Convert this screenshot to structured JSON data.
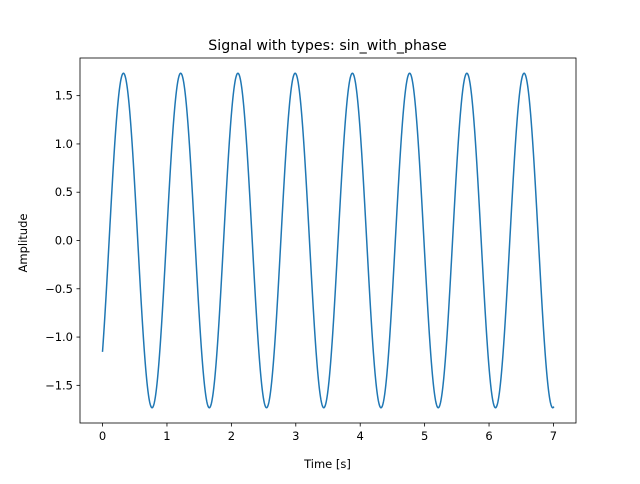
{
  "chart_data": {
    "type": "line",
    "title": "Signal with types: sin_with_phase",
    "xlabel": "Time [s]",
    "ylabel": "Amplitude",
    "xlim": [
      -0.35,
      7.35
    ],
    "ylim": [
      -1.89,
      1.89
    ],
    "xticks": [
      0,
      1,
      2,
      3,
      4,
      5,
      6,
      7
    ],
    "xtick_labels": [
      "0",
      "1",
      "2",
      "3",
      "4",
      "5",
      "6",
      "7"
    ],
    "yticks": [
      -1.5,
      -1.0,
      -0.5,
      0.0,
      0.5,
      1.0,
      1.5
    ],
    "ytick_labels": [
      "−1.5",
      "−1.0",
      "−0.5",
      "0.0",
      "0.5",
      "1.0",
      "1.5"
    ],
    "grid": false,
    "legend": "none",
    "series": [
      {
        "amplitude": 1.7321,
        "frequency_hz": 1.1254,
        "phase_rad": -0.7227,
        "x_start": 0,
        "x_end": 7,
        "color": "#1f77b4"
      }
    ]
  }
}
